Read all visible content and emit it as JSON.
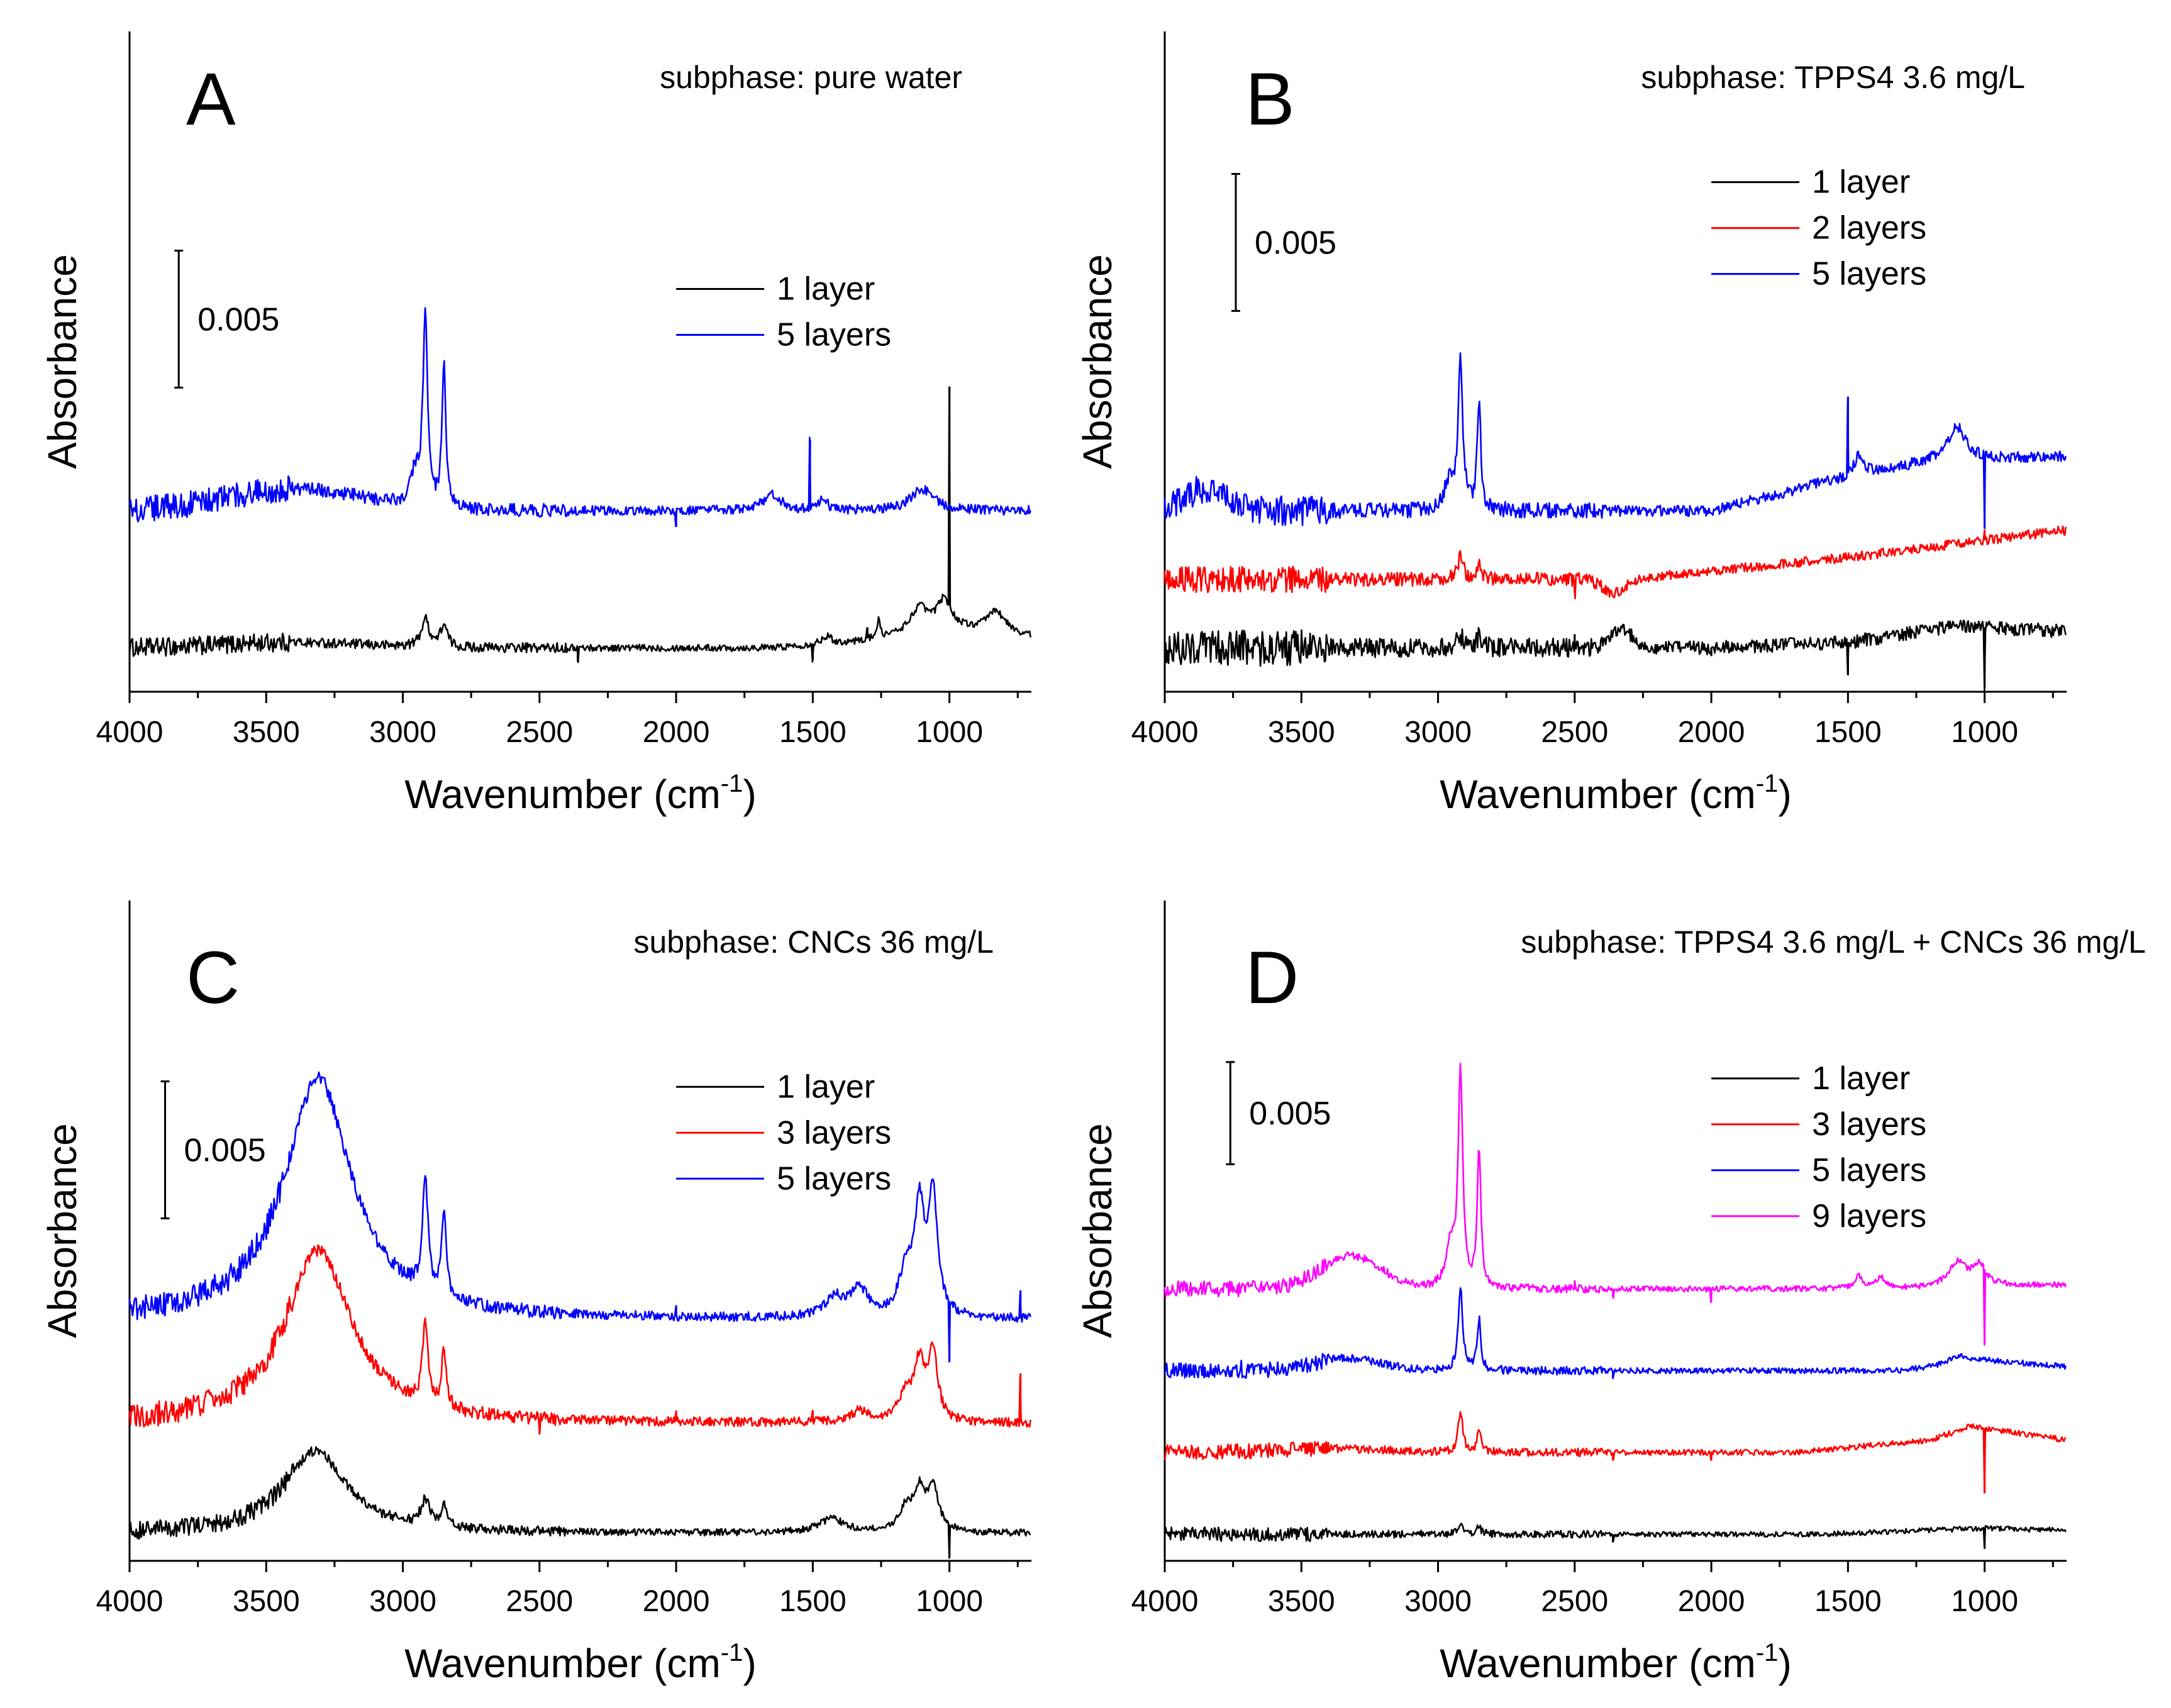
{
  "chart_data": [
    {
      "type": "line",
      "panel_label": "A",
      "subtitle": "subphase: pure water",
      "xlabel": "Wavenumber (cm",
      "xlabel_sup": "-1",
      "xlabel_end": ")",
      "ylabel": "Absorbance",
      "xlim": [
        4000,
        700
      ],
      "ylim": [
        -0.0016,
        0.0225
      ],
      "xticks": [
        "4000",
        "3500",
        "3000",
        "2500",
        "2000",
        "1500",
        "1000"
      ],
      "xtick_values": [
        4000,
        3500,
        3000,
        2500,
        2000,
        1500,
        1000
      ],
      "scalebar": {
        "label": "0.005",
        "value": 0.005,
        "y_bottom": 0.0095,
        "x_position": 3820
      },
      "legend": {
        "placement": "top-right",
        "x_anchor": 2000,
        "y_anchor": 0.0131
      },
      "series": [
        {
          "name": "1 layer",
          "color": "#000000",
          "baseline": 0.0,
          "peaks": [
            [
              2918,
              0.001,
              18
            ],
            [
              2850,
              0.0008,
              15
            ],
            [
              1110,
              0.0009,
              40
            ],
            [
              1020,
              0.001,
              30
            ],
            [
              830,
              0.0008,
              40
            ],
            [
              1260,
              0.0006,
              8
            ],
            [
              1450,
              0.0003,
              20
            ]
          ],
          "spikes": [
            [
              1000,
              0.008
            ],
            [
              2360,
              -0.0005
            ],
            [
              1500,
              -0.0006
            ],
            [
              1300,
              0.0004
            ]
          ],
          "humps": [
            [
              3400,
              0.0002,
              250
            ]
          ],
          "slope": [
            [
              1650,
              0
            ],
            [
              1350,
              0.0002
            ],
            [
              1200,
              0.0004
            ],
            [
              1000,
              0.0007
            ],
            [
              700,
              0.0004
            ]
          ],
          "noise": 0.00018
        },
        {
          "name": "5 layers",
          "color": "#0000ff",
          "baseline": 0.005,
          "peaks": [
            [
              2918,
              0.0069,
              10
            ],
            [
              2850,
              0.0052,
              8
            ],
            [
              2955,
              0.0012,
              20
            ],
            [
              1650,
              0.0006,
              40
            ],
            [
              1460,
              0.0005,
              15
            ],
            [
              1100,
              0.0008,
              50
            ]
          ],
          "spikes": [
            [
              1510,
              0.0025
            ],
            [
              2000,
              -0.0006
            ]
          ],
          "humps": [
            [
              3400,
              0.0008,
              250
            ]
          ],
          "slope": [
            [
              1800,
              0
            ],
            [
              1000,
              0
            ],
            [
              700,
              0
            ]
          ],
          "noise": 0.00025
        }
      ]
    },
    {
      "type": "line",
      "panel_label": "B",
      "subtitle": "subphase: TPPS4 3.6 mg/L",
      "xlabel": "Wavenumber (cm",
      "xlabel_sup": "-1",
      "xlabel_end": ")",
      "ylabel": "Absorbance",
      "xlim": [
        4000,
        700
      ],
      "ylim": [
        -0.0016,
        0.0225
      ],
      "xticks": [
        "4000",
        "3500",
        "3000",
        "2500",
        "2000",
        "1500",
        "1000"
      ],
      "xtick_values": [
        4000,
        3500,
        3000,
        2500,
        2000,
        1500,
        1000
      ],
      "scalebar": {
        "label": "0.005",
        "value": 0.005,
        "y_bottom": 0.0123,
        "x_position": 3740
      },
      "legend": {
        "placement": "top-right",
        "x_anchor": 2000,
        "y_anchor": 0.017
      },
      "series": [
        {
          "name": "1 layer",
          "color": "#000000",
          "baseline": 0.0,
          "peaks": [
            [
              2918,
              0.0004,
              15
            ],
            [
              2850,
              0.0004,
              12
            ]
          ],
          "spikes": [
            [
              1000,
              -0.0022
            ],
            [
              1500,
              -0.0012
            ],
            [
              2500,
              0.0005
            ],
            [
              2000,
              -0.0003
            ]
          ],
          "humps": [
            [
              2330,
              0.0007,
              40
            ]
          ],
          "slope": [
            [
              2000,
              0
            ],
            [
              1500,
              0.0002
            ],
            [
              1100,
              0.0008
            ],
            [
              700,
              0.0006
            ]
          ],
          "noise": 0.00035
        },
        {
          "name": "2 layers",
          "color": "#ff0000",
          "baseline": 0.0025,
          "peaks": [
            [
              2918,
              0.0008,
              12
            ],
            [
              2850,
              0.0006,
              10
            ]
          ],
          "spikes": [
            [
              2500,
              -0.0005
            ],
            [
              1000,
              0.0004
            ]
          ],
          "humps": [
            [
              2360,
              -0.0005,
              40
            ]
          ],
          "slope": [
            [
              2300,
              0
            ],
            [
              1500,
              0.0008
            ],
            [
              700,
              0.0018
            ]
          ],
          "noise": 0.00025
        },
        {
          "name": "5 layers",
          "color": "#0000ff",
          "baseline": 0.005,
          "peaks": [
            [
              2918,
              0.0055,
              10
            ],
            [
              2850,
              0.004,
              8
            ],
            [
              2960,
              0.001,
              20
            ],
            [
              1460,
              0.0008,
              20
            ],
            [
              1100,
              0.0012,
              40
            ]
          ],
          "spikes": [
            [
              1500,
              0.0028
            ],
            [
              1000,
              -0.0027
            ]
          ],
          "humps": [
            [
              3850,
              0.0008,
              80
            ]
          ],
          "slope": [
            [
              2000,
              0
            ],
            [
              1600,
              0.001
            ],
            [
              1200,
              0.0018
            ],
            [
              700,
              0.002
            ]
          ],
          "noise": 0.00028
        }
      ]
    },
    {
      "type": "line",
      "panel_label": "C",
      "subtitle": "subphase: CNCs 36 mg/L",
      "xlabel": "Wavenumber (cm",
      "xlabel_sup": "-1",
      "xlabel_end": ")",
      "ylabel": "Absorbance",
      "xlim": [
        4000,
        700
      ],
      "ylim": [
        -0.001,
        0.0231
      ],
      "xticks": [
        "4000",
        "3500",
        "3000",
        "2500",
        "2000",
        "1500",
        "1000"
      ],
      "xtick_values": [
        4000,
        3500,
        3000,
        2500,
        2000,
        1500,
        1000
      ],
      "scalebar": {
        "label": "0.005",
        "value": 0.005,
        "y_bottom": 0.0115,
        "x_position": 3870
      },
      "legend": {
        "placement": "top-right",
        "x_anchor": 2000,
        "y_anchor": 0.0163
      },
      "series": [
        {
          "name": "1 layer",
          "color": "#000000",
          "baseline": 0.0,
          "peaks": [
            [
              3320,
              0.003,
              140
            ],
            [
              2918,
              0.0009,
              20
            ],
            [
              2850,
              0.0007,
              15
            ],
            [
              1110,
              0.0014,
              25
            ],
            [
              1060,
              0.0015,
              25
            ],
            [
              1160,
              0.0008,
              30
            ],
            [
              1430,
              0.0005,
              60
            ]
          ],
          "spikes": [
            [
              1000,
              -0.0012
            ]
          ],
          "humps": [],
          "slope": [],
          "noise": 0.00018
        },
        {
          "name": "3 layers",
          "color": "#ff0000",
          "baseline": 0.004,
          "peaks": [
            [
              3310,
              0.0063,
              150
            ],
            [
              2918,
              0.003,
              12
            ],
            [
              2850,
              0.0022,
              10
            ],
            [
              1110,
              0.002,
              22
            ],
            [
              1060,
              0.0025,
              20
            ],
            [
              1160,
              0.001,
              30
            ],
            [
              1330,
              0.0004,
              40
            ]
          ],
          "spikes": [
            [
              740,
              0.0018
            ],
            [
              2500,
              -0.0006
            ],
            [
              1500,
              0.0004
            ],
            [
              2000,
              0.0004
            ]
          ],
          "humps": [],
          "slope": [],
          "noise": 0.00024
        },
        {
          "name": "5 layers",
          "color": "#0000ff",
          "baseline": 0.0078,
          "peaks": [
            [
              3310,
              0.0088,
              150
            ],
            [
              2918,
              0.0042,
              12
            ],
            [
              2850,
              0.003,
              10
            ],
            [
              1110,
              0.0038,
              22
            ],
            [
              1060,
              0.0043,
              20
            ],
            [
              1160,
              0.0015,
              30
            ],
            [
              1330,
              0.001,
              40
            ],
            [
              1420,
              0.0007,
              40
            ]
          ],
          "spikes": [
            [
              1000,
              -0.0022
            ],
            [
              740,
              0.001
            ],
            [
              2000,
              0.0004
            ]
          ],
          "humps": [],
          "slope": [],
          "noise": 0.00024
        }
      ]
    },
    {
      "type": "line",
      "panel_label": "D",
      "subtitle": "subphase: TPPS4 3.6 mg/L + CNCs 36 mg/L",
      "xlabel": "Wavenumber (cm",
      "xlabel_sup": "-1",
      "xlabel_end": ")",
      "ylabel": "Absorbance",
      "xlim": [
        4000,
        700
      ],
      "ylim": [
        -0.0013,
        0.031
      ],
      "xticks": [
        "4000",
        "3500",
        "3000",
        "2500",
        "2000",
        "1500",
        "1000"
      ],
      "xtick_values": [
        4000,
        3500,
        3000,
        2500,
        2000,
        1500,
        1000
      ],
      "scalebar": {
        "label": "0.005",
        "value": 0.005,
        "y_bottom": 0.0181,
        "x_position": 3760
      },
      "legend": {
        "placement": "top-right",
        "x_anchor": 2000,
        "y_anchor": 0.0223
      },
      "series": [
        {
          "name": "1 layer",
          "color": "#000000",
          "baseline": 0.0,
          "peaks": [
            [
              2918,
              0.0004,
              15
            ],
            [
              2850,
              0.0003,
              12
            ]
          ],
          "spikes": [
            [
              1000,
              -0.001
            ],
            [
              2360,
              -0.0004
            ]
          ],
          "humps": [],
          "slope": [
            [
              1600,
              0
            ],
            [
              1000,
              0.0003
            ],
            [
              700,
              0.0002
            ]
          ],
          "noise": 0.00018
        },
        {
          "name": "3 layers",
          "color": "#ff0000",
          "baseline": 0.004,
          "peaks": [
            [
              2918,
              0.002,
              10
            ],
            [
              2850,
              0.0012,
              8
            ]
          ],
          "spikes": [
            [
              1000,
              -0.0032
            ],
            [
              2000,
              -0.0004
            ],
            [
              2360,
              -0.0004
            ]
          ],
          "humps": [
            [
              3400,
              0.0002,
              200
            ]
          ],
          "slope": [
            [
              1700,
              0
            ],
            [
              1200,
              0.0006
            ],
            [
              1050,
              0.0013
            ],
            [
              700,
              0.0006
            ]
          ],
          "noise": 0.0002
        },
        {
          "name": "5 layers",
          "color": "#0000ff",
          "baseline": 0.008,
          "peaks": [
            [
              2918,
              0.004,
              10
            ],
            [
              2850,
              0.0025,
              8
            ],
            [
              1100,
              0.0004,
              40
            ]
          ],
          "spikes": [
            [
              3720,
              0.0004
            ],
            [
              2360,
              -0.0004
            ]
          ],
          "humps": [
            [
              3330,
              0.0006,
              120
            ]
          ],
          "slope": [
            [
              1300,
              0
            ],
            [
              1000,
              0.0005
            ],
            [
              700,
              0.0002
            ]
          ],
          "noise": 0.0002
        },
        {
          "name": "9 layers",
          "color": "#ff00ff",
          "baseline": 0.012,
          "peaks": [
            [
              2918,
              0.0105,
              10
            ],
            [
              2850,
              0.0068,
              8
            ],
            [
              2955,
              0.002,
              20
            ],
            [
              1460,
              0.0006,
              20
            ],
            [
              1380,
              0.0005,
              20
            ],
            [
              1100,
              0.0012,
              40
            ],
            [
              1020,
              0.001,
              30
            ]
          ],
          "spikes": [
            [
              1000,
              -0.0036
            ],
            [
              2000,
              -0.0006
            ],
            [
              2500,
              0.0004
            ],
            [
              2360,
              -0.0004
            ]
          ],
          "humps": [
            [
              3320,
              0.0016,
              110
            ]
          ],
          "slope": [
            [
              1300,
              0
            ],
            [
              700,
              0.0002
            ]
          ],
          "noise": 0.0002
        }
      ]
    }
  ]
}
